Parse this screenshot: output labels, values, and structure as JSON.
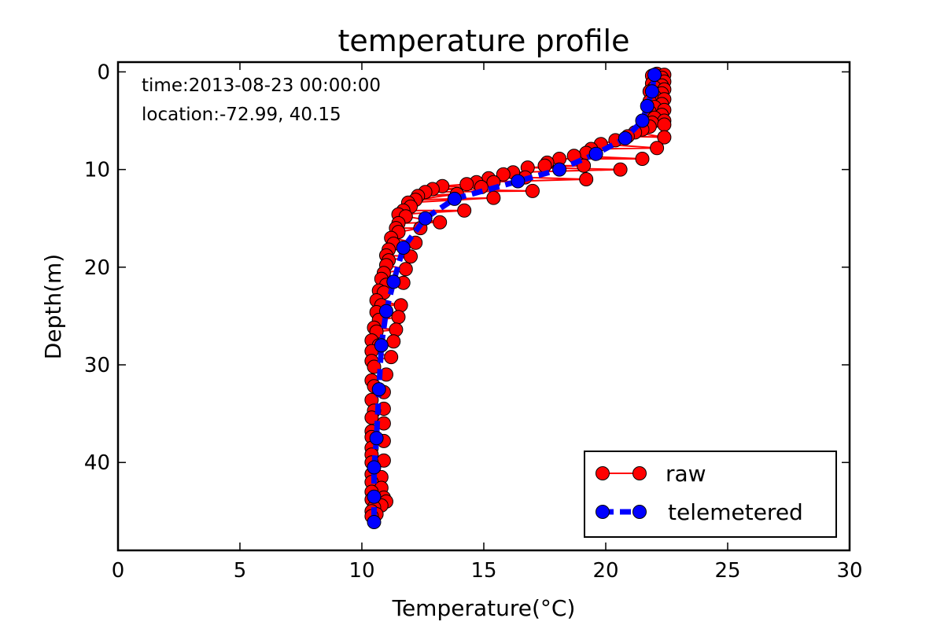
{
  "chart_data": {
    "type": "line",
    "title": "temperature profile",
    "xlabel": "Temperature(°C)",
    "ylabel": "Depth(m)",
    "xlim": [
      0,
      30
    ],
    "ylim": [
      49,
      -1
    ],
    "y_inverted": true,
    "x_ticks": [
      "0",
      "5",
      "10",
      "15",
      "20",
      "25",
      "30"
    ],
    "y_ticks": [
      "0",
      "10",
      "20",
      "30",
      "40"
    ],
    "grid": false,
    "legend_position": "lower-right",
    "annotations": [
      "time:2013-08-23 00:00:00",
      "location:-72.99, 40.15"
    ],
    "series": [
      {
        "name": "raw",
        "color": "#ff0000",
        "line_style": "solid",
        "marker": "circle",
        "points": [
          [
            22.1,
            0.2
          ],
          [
            22.4,
            0.3
          ],
          [
            21.9,
            0.4
          ],
          [
            22.3,
            0.6
          ],
          [
            22.0,
            0.8
          ],
          [
            22.4,
            1.0
          ],
          [
            21.9,
            1.2
          ],
          [
            22.3,
            1.4
          ],
          [
            22.0,
            1.6
          ],
          [
            22.4,
            1.8
          ],
          [
            21.8,
            2.0
          ],
          [
            22.3,
            2.2
          ],
          [
            22.0,
            2.5
          ],
          [
            22.4,
            2.8
          ],
          [
            21.8,
            3.0
          ],
          [
            22.3,
            3.3
          ],
          [
            22.0,
            3.6
          ],
          [
            22.4,
            3.9
          ],
          [
            21.8,
            4.1
          ],
          [
            22.3,
            4.4
          ],
          [
            22.0,
            4.7
          ],
          [
            22.4,
            5.0
          ],
          [
            21.9,
            5.2
          ],
          [
            22.4,
            5.4
          ],
          [
            21.8,
            5.6
          ],
          [
            21.5,
            5.9
          ],
          [
            21.2,
            6.2
          ],
          [
            22.4,
            6.7
          ],
          [
            20.9,
            6.6
          ],
          [
            20.4,
            7.0
          ],
          [
            19.8,
            7.4
          ],
          [
            22.1,
            7.8
          ],
          [
            19.4,
            7.9
          ],
          [
            19.2,
            8.3
          ],
          [
            18.7,
            8.6
          ],
          [
            21.5,
            8.9
          ],
          [
            18.1,
            8.9
          ],
          [
            17.6,
            9.3
          ],
          [
            17.5,
            9.6
          ],
          [
            19.1,
            9.6
          ],
          [
            16.8,
            9.8
          ],
          [
            20.6,
            10.0
          ],
          [
            16.2,
            10.3
          ],
          [
            15.8,
            10.5
          ],
          [
            15.2,
            10.9
          ],
          [
            16.7,
            10.8
          ],
          [
            19.2,
            11.0
          ],
          [
            14.7,
            11.3
          ],
          [
            15.4,
            11.3
          ],
          [
            14.3,
            11.5
          ],
          [
            13.3,
            11.7
          ],
          [
            14.9,
            11.8
          ],
          [
            12.9,
            12.0
          ],
          [
            17.0,
            12.2
          ],
          [
            12.6,
            12.3
          ],
          [
            12.3,
            12.7
          ],
          [
            13.9,
            12.5
          ],
          [
            12.2,
            13.1
          ],
          [
            15.4,
            12.9
          ],
          [
            11.9,
            13.4
          ],
          [
            12.0,
            13.8
          ],
          [
            11.7,
            14.2
          ],
          [
            14.2,
            14.2
          ],
          [
            11.5,
            14.6
          ],
          [
            11.8,
            14.8
          ],
          [
            13.2,
            15.4
          ],
          [
            11.5,
            15.5
          ],
          [
            11.4,
            16.0
          ],
          [
            12.4,
            16.0
          ],
          [
            11.5,
            16.4
          ],
          [
            11.2,
            17.0
          ],
          [
            12.2,
            17.5
          ],
          [
            11.3,
            17.6
          ],
          [
            11.1,
            18.2
          ],
          [
            11.0,
            18.8
          ],
          [
            12.0,
            18.9
          ],
          [
            11.1,
            19.3
          ],
          [
            11.0,
            19.8
          ],
          [
            11.8,
            20.2
          ],
          [
            10.9,
            20.6
          ],
          [
            10.8,
            21.2
          ],
          [
            11.7,
            21.6
          ],
          [
            11.0,
            21.8
          ],
          [
            10.7,
            22.4
          ],
          [
            10.9,
            22.6
          ],
          [
            10.6,
            23.4
          ],
          [
            11.6,
            23.9
          ],
          [
            10.8,
            23.9
          ],
          [
            10.6,
            24.6
          ],
          [
            11.5,
            25.1
          ],
          [
            10.7,
            25.4
          ],
          [
            10.5,
            26.2
          ],
          [
            11.4,
            26.4
          ],
          [
            10.6,
            26.6
          ],
          [
            10.4,
            27.5
          ],
          [
            11.3,
            27.6
          ],
          [
            10.7,
            28.0
          ],
          [
            10.4,
            28.6
          ],
          [
            11.2,
            29.2
          ],
          [
            10.4,
            29.6
          ],
          [
            10.5,
            30.2
          ],
          [
            11.0,
            31.0
          ],
          [
            10.4,
            31.6
          ],
          [
            10.5,
            32.2
          ],
          [
            10.9,
            32.8
          ],
          [
            10.4,
            33.6
          ],
          [
            10.9,
            34.5
          ],
          [
            10.5,
            34.7
          ],
          [
            10.4,
            35.4
          ],
          [
            10.9,
            36.0
          ],
          [
            10.4,
            36.8
          ],
          [
            10.4,
            37.4
          ],
          [
            10.9,
            37.8
          ],
          [
            10.4,
            38.5
          ],
          [
            10.4,
            39.2
          ],
          [
            10.9,
            39.8
          ],
          [
            10.4,
            40.0
          ],
          [
            10.4,
            41.2
          ],
          [
            10.8,
            41.5
          ],
          [
            10.4,
            42.0
          ],
          [
            10.8,
            42.6
          ],
          [
            10.4,
            43.0
          ],
          [
            10.9,
            43.6
          ],
          [
            10.4,
            43.8
          ],
          [
            11.0,
            44.0
          ],
          [
            10.8,
            44.4
          ],
          [
            10.5,
            44.6
          ],
          [
            10.4,
            45.0
          ],
          [
            10.6,
            45.3
          ],
          [
            10.4,
            45.5
          ]
        ]
      },
      {
        "name": "telemetered",
        "color": "#0000ff",
        "line_style": "dashed",
        "marker": "circle",
        "points": [
          [
            22.0,
            0.3
          ],
          [
            21.9,
            2.0
          ],
          [
            21.7,
            3.5
          ],
          [
            21.5,
            5.0
          ],
          [
            20.8,
            6.8
          ],
          [
            19.6,
            8.4
          ],
          [
            18.1,
            10.0
          ],
          [
            16.4,
            11.2
          ],
          [
            13.8,
            13.0
          ],
          [
            12.6,
            15.0
          ],
          [
            11.7,
            18.0
          ],
          [
            11.3,
            21.5
          ],
          [
            11.0,
            24.5
          ],
          [
            10.8,
            28.0
          ],
          [
            10.7,
            32.5
          ],
          [
            10.6,
            37.5
          ],
          [
            10.5,
            40.5
          ],
          [
            10.5,
            43.5
          ],
          [
            10.5,
            46.1
          ]
        ]
      }
    ]
  }
}
